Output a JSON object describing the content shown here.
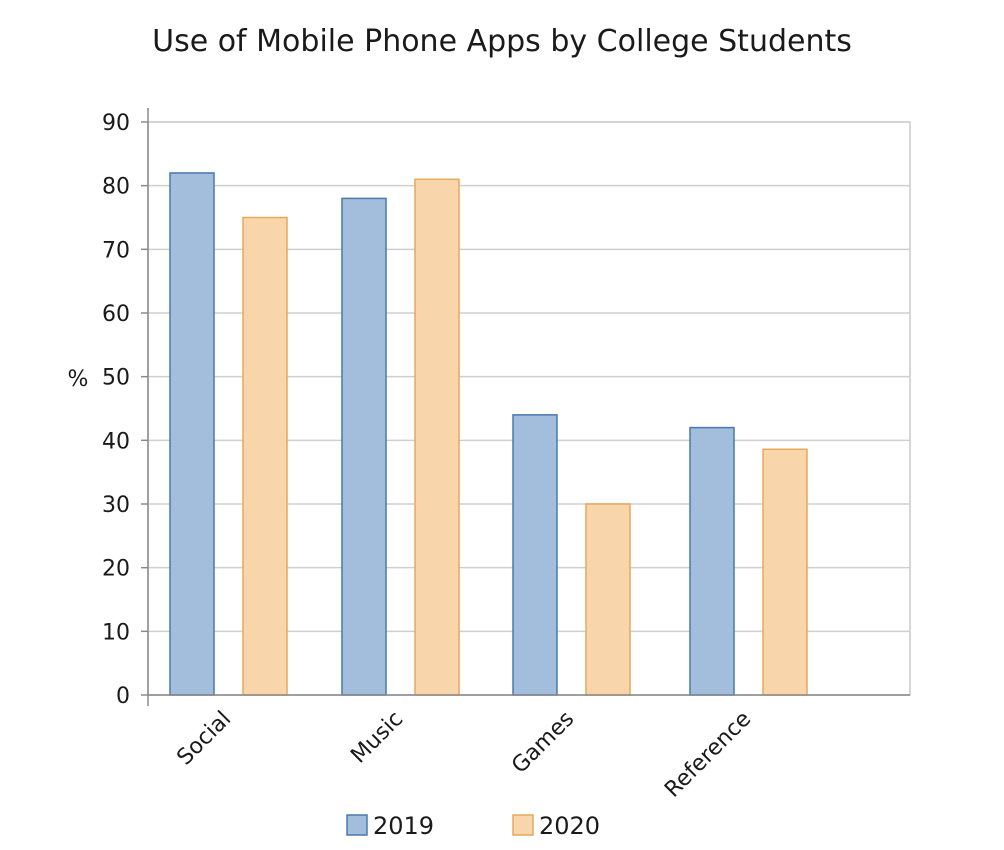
{
  "chart_data": {
    "type": "bar",
    "title": "Use of Mobile Phone Apps by College Students",
    "xlabel": "",
    "ylabel": "%",
    "ylim": [
      0,
      90
    ],
    "yticks": [
      0,
      10,
      20,
      30,
      40,
      50,
      60,
      70,
      80,
      90
    ],
    "categories": [
      "Social",
      "Music",
      "Games",
      "Reference"
    ],
    "series": [
      {
        "name": "2019",
        "values": [
          82,
          78,
          44,
          42
        ],
        "color": "#a3bedd",
        "stroke": "#4a78ae"
      },
      {
        "name": "2020",
        "values": [
          75,
          81,
          30,
          38.6
        ],
        "color": "#f8d5ab",
        "stroke": "#e7a95a"
      }
    ],
    "grid": true,
    "legend_position": "bottom"
  }
}
